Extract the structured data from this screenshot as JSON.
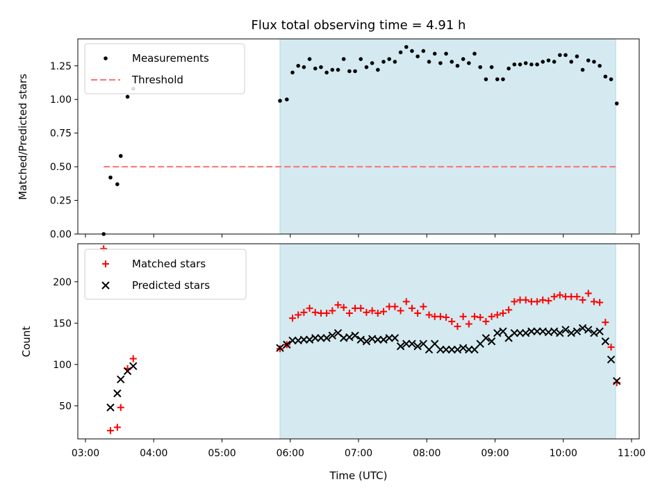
{
  "chart_data": [
    {
      "panel": "top",
      "type": "scatter",
      "title": "Flux total observing time = 4.91 h",
      "ylabel": "Matched/Predicted stars",
      "xlim": [
        "03:00",
        "11:00"
      ],
      "ylim": [
        0,
        1.45
      ],
      "yticks": [
        "0.00",
        "0.25",
        "0.50",
        "0.75",
        "1.00",
        "1.25"
      ],
      "shaded_interval": [
        "05:51",
        "10:46"
      ],
      "shade_color": "#d4eaf0",
      "threshold": {
        "name": "Threshold",
        "value": 0.5,
        "x_range": [
          "03:16",
          "10:46"
        ],
        "color": "#ff7070"
      },
      "series": [
        {
          "name": "Measurements",
          "marker": "dot",
          "color": "#000000",
          "points": [
            [
              "03:16",
              0.0
            ],
            [
              "03:22",
              0.42
            ],
            [
              "03:28",
              0.37
            ],
            [
              "03:31",
              0.58
            ],
            [
              "03:37",
              1.02
            ],
            [
              "03:42",
              1.08
            ],
            [
              "05:51",
              0.99
            ],
            [
              "05:57",
              1.0
            ],
            [
              "06:02",
              1.2
            ],
            [
              "06:07",
              1.25
            ],
            [
              "06:12",
              1.24
            ],
            [
              "06:17",
              1.3
            ],
            [
              "06:22",
              1.23
            ],
            [
              "06:27",
              1.24
            ],
            [
              "06:32",
              1.2
            ],
            [
              "06:37",
              1.22
            ],
            [
              "06:42",
              1.22
            ],
            [
              "06:47",
              1.3
            ],
            [
              "06:52",
              1.21
            ],
            [
              "06:57",
              1.21
            ],
            [
              "07:02",
              1.3
            ],
            [
              "07:07",
              1.24
            ],
            [
              "07:12",
              1.27
            ],
            [
              "07:17",
              1.22
            ],
            [
              "07:22",
              1.28
            ],
            [
              "07:27",
              1.3
            ],
            [
              "07:32",
              1.28
            ],
            [
              "07:37",
              1.35
            ],
            [
              "07:42",
              1.39
            ],
            [
              "07:47",
              1.36
            ],
            [
              "07:52",
              1.32
            ],
            [
              "07:57",
              1.36
            ],
            [
              "08:02",
              1.28
            ],
            [
              "08:07",
              1.34
            ],
            [
              "08:12",
              1.27
            ],
            [
              "08:17",
              1.34
            ],
            [
              "08:22",
              1.28
            ],
            [
              "08:27",
              1.25
            ],
            [
              "08:32",
              1.3
            ],
            [
              "08:37",
              1.27
            ],
            [
              "08:42",
              1.34
            ],
            [
              "08:47",
              1.24
            ],
            [
              "08:52",
              1.15
            ],
            [
              "08:57",
              1.24
            ],
            [
              "09:02",
              1.15
            ],
            [
              "09:07",
              1.15
            ],
            [
              "09:12",
              1.23
            ],
            [
              "09:17",
              1.26
            ],
            [
              "09:22",
              1.26
            ],
            [
              "09:27",
              1.27
            ],
            [
              "09:32",
              1.26
            ],
            [
              "09:37",
              1.26
            ],
            [
              "09:42",
              1.28
            ],
            [
              "09:47",
              1.29
            ],
            [
              "09:52",
              1.28
            ],
            [
              "09:57",
              1.33
            ],
            [
              "10:02",
              1.33
            ],
            [
              "10:07",
              1.28
            ],
            [
              "10:12",
              1.32
            ],
            [
              "10:17",
              1.22
            ],
            [
              "10:22",
              1.29
            ],
            [
              "10:27",
              1.28
            ],
            [
              "10:32",
              1.25
            ],
            [
              "10:37",
              1.17
            ],
            [
              "10:42",
              1.15
            ],
            [
              "10:47",
              0.97
            ]
          ]
        }
      ],
      "legend_position": "top-left"
    },
    {
      "panel": "bottom",
      "type": "scatter",
      "xlabel": "Time (UTC)",
      "ylabel": "Count",
      "xlim": [
        "03:00",
        "11:00"
      ],
      "ylim": [
        10,
        246
      ],
      "xticks": [
        "03:00",
        "04:00",
        "05:00",
        "06:00",
        "07:00",
        "08:00",
        "09:00",
        "10:00",
        "11:00"
      ],
      "yticks": [
        "50",
        "100",
        "150",
        "200"
      ],
      "shaded_interval": [
        "05:51",
        "10:46"
      ],
      "shade_color": "#d4eaf0",
      "series": [
        {
          "name": "Matched stars",
          "marker": "plus",
          "color": "#ff0000",
          "points": [
            [
              "03:16",
              240
            ],
            [
              "03:22",
              20
            ],
            [
              "03:28",
              24
            ],
            [
              "03:31",
              48
            ],
            [
              "03:37",
              95
            ],
            [
              "03:42",
              107
            ],
            [
              "05:51",
              119
            ],
            [
              "05:57",
              124
            ],
            [
              "06:02",
              156
            ],
            [
              "06:07",
              160
            ],
            [
              "06:12",
              163
            ],
            [
              "06:17",
              168
            ],
            [
              "06:22",
              163
            ],
            [
              "06:27",
              162
            ],
            [
              "06:32",
              162
            ],
            [
              "06:37",
              165
            ],
            [
              "06:42",
              172
            ],
            [
              "06:47",
              169
            ],
            [
              "06:52",
              162
            ],
            [
              "06:57",
              168
            ],
            [
              "07:02",
              168
            ],
            [
              "07:07",
              163
            ],
            [
              "07:12",
              165
            ],
            [
              "07:17",
              162
            ],
            [
              "07:22",
              164
            ],
            [
              "07:27",
              170
            ],
            [
              "07:32",
              170
            ],
            [
              "07:37",
              165
            ],
            [
              "07:42",
              176
            ],
            [
              "07:47",
              168
            ],
            [
              "07:52",
              162
            ],
            [
              "07:57",
              170
            ],
            [
              "08:02",
              160
            ],
            [
              "08:07",
              158
            ],
            [
              "08:12",
              158
            ],
            [
              "08:17",
              157
            ],
            [
              "08:22",
              152
            ],
            [
              "08:27",
              146
            ],
            [
              "08:32",
              158
            ],
            [
              "08:37",
              149
            ],
            [
              "08:42",
              158
            ],
            [
              "08:47",
              157
            ],
            [
              "08:52",
              152
            ],
            [
              "08:57",
              158
            ],
            [
              "09:02",
              160
            ],
            [
              "09:07",
              162
            ],
            [
              "09:12",
              166
            ],
            [
              "09:17",
              176
            ],
            [
              "09:22",
              178
            ],
            [
              "09:27",
              178
            ],
            [
              "09:32",
              176
            ],
            [
              "09:37",
              176
            ],
            [
              "09:42",
              178
            ],
            [
              "09:47",
              177
            ],
            [
              "09:52",
              182
            ],
            [
              "09:57",
              184
            ],
            [
              "10:02",
              182
            ],
            [
              "10:07",
              182
            ],
            [
              "10:12",
              182
            ],
            [
              "10:17",
              178
            ],
            [
              "10:22",
              186
            ],
            [
              "10:27",
              176
            ],
            [
              "10:32",
              175
            ],
            [
              "10:37",
              151
            ],
            [
              "10:42",
              121
            ],
            [
              "10:47",
              78
            ]
          ]
        },
        {
          "name": "Predicted stars",
          "marker": "x",
          "color": "#000000",
          "points": [
            [
              "03:22",
              48
            ],
            [
              "03:28",
              65
            ],
            [
              "03:31",
              82
            ],
            [
              "03:37",
              92
            ],
            [
              "03:42",
              98
            ],
            [
              "05:51",
              120
            ],
            [
              "05:57",
              124
            ],
            [
              "06:02",
              129
            ],
            [
              "06:07",
              129
            ],
            [
              "06:12",
              130
            ],
            [
              "06:17",
              130
            ],
            [
              "06:22",
              132
            ],
            [
              "06:27",
              132
            ],
            [
              "06:32",
              132
            ],
            [
              "06:37",
              135
            ],
            [
              "06:42",
              138
            ],
            [
              "06:47",
              132
            ],
            [
              "06:52",
              133
            ],
            [
              "06:57",
              135
            ],
            [
              "07:02",
              130
            ],
            [
              "07:07",
              128
            ],
            [
              "07:12",
              131
            ],
            [
              "07:17",
              130
            ],
            [
              "07:22",
              130
            ],
            [
              "07:27",
              132
            ],
            [
              "07:32",
              132
            ],
            [
              "07:37",
              122
            ],
            [
              "07:42",
              125
            ],
            [
              "07:47",
              125
            ],
            [
              "07:52",
              122
            ],
            [
              "07:57",
              125
            ],
            [
              "08:02",
              118
            ],
            [
              "08:07",
              125
            ],
            [
              "08:12",
              118
            ],
            [
              "08:17",
              118
            ],
            [
              "08:22",
              118
            ],
            [
              "08:27",
              118
            ],
            [
              "08:32",
              120
            ],
            [
              "08:37",
              118
            ],
            [
              "08:42",
              118
            ],
            [
              "08:47",
              125
            ],
            [
              "08:52",
              132
            ],
            [
              "08:57",
              128
            ],
            [
              "09:02",
              138
            ],
            [
              "09:07",
              140
            ],
            [
              "09:12",
              132
            ],
            [
              "09:17",
              138
            ],
            [
              "09:22",
              138
            ],
            [
              "09:27",
              138
            ],
            [
              "09:32",
              140
            ],
            [
              "09:37",
              140
            ],
            [
              "09:42",
              140
            ],
            [
              "09:47",
              139
            ],
            [
              "09:52",
              140
            ],
            [
              "09:57",
              138
            ],
            [
              "10:02",
              142
            ],
            [
              "10:07",
              138
            ],
            [
              "10:12",
              140
            ],
            [
              "10:17",
              144
            ],
            [
              "10:22",
              142
            ],
            [
              "10:27",
              138
            ],
            [
              "10:32",
              140
            ],
            [
              "10:37",
              128
            ],
            [
              "10:42",
              106
            ],
            [
              "10:47",
              80
            ]
          ]
        }
      ],
      "legend_position": "top-left"
    }
  ]
}
